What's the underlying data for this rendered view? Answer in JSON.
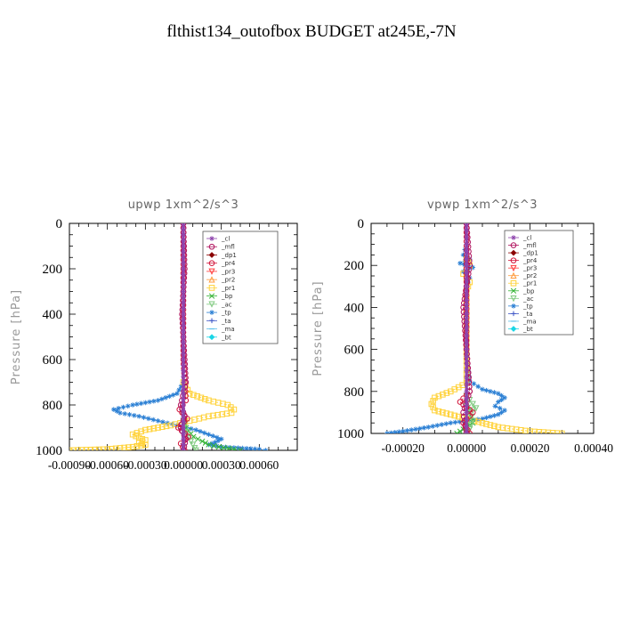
{
  "page": {
    "title": "flthist134_outofbox  BUDGET at245E,-7N"
  },
  "legend_entries": [
    {
      "name": "_cl",
      "color": "#8e44ad",
      "marker": "asterisk"
    },
    {
      "name": "_mfl",
      "color": "#b0125e",
      "marker": "circle"
    },
    {
      "name": "_dp1",
      "color": "#8b0000",
      "marker": "diamond"
    },
    {
      "name": "_pr4",
      "color": "#d2143a",
      "marker": "circle"
    },
    {
      "name": "_pr3",
      "color": "#ff3b3b",
      "marker": "triangle-down"
    },
    {
      "name": "_pr2",
      "color": "#ff9a3c",
      "marker": "triangle-up"
    },
    {
      "name": "_pr1",
      "color": "#ffd23a",
      "marker": "square"
    },
    {
      "name": "_bp",
      "color": "#35b335",
      "marker": "x"
    },
    {
      "name": "_ac",
      "color": "#7fc97f",
      "marker": "triangle-down"
    },
    {
      "name": "_tp",
      "color": "#2a7fd4",
      "marker": "asterisk"
    },
    {
      "name": "_ta",
      "color": "#3a52c4",
      "marker": "plus"
    },
    {
      "name": "_ma",
      "color": "#5bc0eb",
      "marker": "dash"
    },
    {
      "name": "_bt",
      "color": "#1ad6e6",
      "marker": "diamond"
    }
  ],
  "chart_data": [
    {
      "type": "line",
      "title": "upwp   1xm^2/s^3",
      "xlabel": "",
      "ylabel": "Pressure [hPa]",
      "xlim": [
        -0.0009,
        0.0009
      ],
      "ylim": [
        1000,
        0
      ],
      "xticks": [
        -0.0009,
        -0.0006,
        -0.0003,
        0.0,
        0.0003,
        0.0006
      ],
      "xtick_labels": [
        "-0.00090",
        "-0.00060",
        "-0.00030",
        "0.00000",
        "0.00030",
        "0.00060"
      ],
      "yticks": [
        0,
        200,
        400,
        600,
        800,
        1000
      ],
      "ytick_labels": [
        "0",
        "200",
        "400",
        "600",
        "800",
        "1000"
      ],
      "legend_position": "top-right",
      "grid": false,
      "series": [
        {
          "name": "_tp",
          "color": "#2a7fd4",
          "y": [
            700,
            750,
            780,
            800,
            820,
            835,
            850,
            870,
            890,
            910,
            930,
            950,
            965,
            975,
            985,
            995,
            1000
          ],
          "x": [
            0,
            -5e-05,
            -0.0002,
            -0.0004,
            -0.00055,
            -0.0005,
            -0.00035,
            -0.0002,
            -5e-05,
            0.0001,
            0.0002,
            0.0003,
            0.00025,
            0.0002,
            0.0003,
            0.0006,
            0.00065
          ]
        },
        {
          "name": "_pr1",
          "color": "#ffd23a",
          "y": [
            700,
            750,
            780,
            800,
            820,
            835,
            850,
            870,
            890,
            910,
            930,
            945,
            955,
            965,
            975,
            985,
            995,
            1000
          ],
          "x": [
            0,
            5e-05,
            0.0002,
            0.00035,
            0.0004,
            0.00038,
            0.0002,
            5e-05,
            -0.0001,
            -0.0003,
            -0.0004,
            -0.00035,
            -0.0003,
            -0.00035,
            -0.0003,
            -0.0004,
            -0.0006,
            -0.0009
          ]
        },
        {
          "name": "_bp",
          "color": "#35b335",
          "y": [
            850,
            900,
            940,
            960,
            975,
            985,
            995,
            1000
          ],
          "x": [
            0,
            2e-05,
            8e-05,
            0.00015,
            0.0002,
            0.00028,
            0.0004,
            0.00045
          ]
        },
        {
          "name": "_ac",
          "color": "#7fc97f",
          "y": [
            870,
            920,
            960,
            990,
            1000
          ],
          "x": [
            0,
            3e-05,
            6e-05,
            9e-05,
            0.0001
          ]
        },
        {
          "name": "_pr4",
          "color": "#d2143a",
          "y": [
            0,
            300,
            600,
            780,
            820,
            860,
            900,
            940,
            970,
            1000
          ],
          "x": [
            0,
            0,
            0,
            2e-05,
            -3e-05,
            3e-05,
            -4e-05,
            4e-05,
            -2e-05,
            1e-05
          ]
        },
        {
          "name": "_mfl",
          "color": "#b0125e",
          "y": [
            0,
            200,
            400,
            600,
            700,
            800,
            850,
            900,
            950,
            1000
          ],
          "x": [
            0,
            1e-05,
            -1e-05,
            1e-05,
            2e-05,
            -2e-05,
            1e-05,
            -2e-05,
            2e-05,
            0
          ]
        },
        {
          "name": "_cl",
          "color": "#8e44ad",
          "y": [
            0,
            100,
            200,
            300,
            400,
            500,
            600,
            700,
            800,
            900,
            1000
          ],
          "x": [
            0,
            0,
            0,
            0,
            0,
            0,
            0,
            0,
            0,
            0,
            0
          ]
        }
      ]
    },
    {
      "type": "line",
      "title": "vpwp   1xm^2/s^3",
      "xlabel": "",
      "ylabel": "Pressure [hPa]",
      "xlim": [
        -0.0003,
        0.0004
      ],
      "ylim": [
        1000,
        0
      ],
      "xticks": [
        -0.0002,
        0.0,
        0.0002,
        0.0004
      ],
      "xtick_labels": [
        "-0.00020",
        "0.00000",
        "0.00020",
        "0.00040"
      ],
      "yticks": [
        0,
        200,
        400,
        600,
        800,
        1000
      ],
      "ytick_labels": [
        "0",
        "200",
        "400",
        "600",
        "800",
        "1000"
      ],
      "legend_position": "top-right",
      "grid": false,
      "series": [
        {
          "name": "_tp",
          "color": "#2a7fd4",
          "y": [
            100,
            150,
            170,
            190,
            210,
            230,
            260,
            300,
            400,
            600,
            750,
            790,
            810,
            830,
            850,
            870,
            890,
            910,
            930,
            950,
            970,
            990,
            1000
          ],
          "x": [
            0,
            -1e-05,
            1e-05,
            -2e-05,
            2e-05,
            -1e-05,
            1e-05,
            0,
            0,
            0,
            1e-05,
            5e-05,
            0.0001,
            0.00012,
            0.0001,
            9e-05,
            0.00012,
            0.0001,
            5e-05,
            -5e-05,
            -0.00012,
            -0.0002,
            -0.00025
          ]
        },
        {
          "name": "_pr1",
          "color": "#ffd23a",
          "y": [
            170,
            200,
            240,
            280,
            320,
            760,
            800,
            830,
            860,
            890,
            910,
            930,
            950,
            970,
            990,
            1000
          ],
          "x": [
            0,
            1e-05,
            -1e-05,
            1e-05,
            0,
            0,
            -5e-05,
            -0.0001,
            -0.00011,
            -0.0001,
            -5e-05,
            0,
            5e-05,
            0.0001,
            0.0002,
            0.0003
          ]
        },
        {
          "name": "_bp",
          "color": "#35b335",
          "y": [
            850,
            900,
            950,
            980,
            1000
          ],
          "x": [
            0,
            1e-05,
            2e-05,
            -1e-05,
            -3e-05
          ]
        },
        {
          "name": "_ac",
          "color": "#7fc97f",
          "y": [
            820,
            860,
            880,
            900,
            940,
            980,
            1000
          ],
          "x": [
            0,
            2e-05,
            3e-05,
            1e-05,
            2e-05,
            1e-05,
            0
          ]
        },
        {
          "name": "_pr4",
          "color": "#d2143a",
          "y": [
            0,
            300,
            600,
            800,
            850,
            900,
            950,
            1000
          ],
          "x": [
            0,
            0,
            0,
            1e-05,
            -2e-05,
            2e-05,
            -1e-05,
            1e-05
          ]
        },
        {
          "name": "_mfl",
          "color": "#b0125e",
          "y": [
            0,
            200,
            400,
            600,
            800,
            900,
            1000
          ],
          "x": [
            0,
            1e-05,
            -1e-05,
            0,
            1e-05,
            -1e-05,
            0
          ]
        },
        {
          "name": "_cl",
          "color": "#8e44ad",
          "y": [
            0,
            100,
            200,
            300,
            400,
            500,
            600,
            700,
            800,
            900,
            1000
          ],
          "x": [
            0,
            0,
            0,
            0,
            0,
            0,
            0,
            0,
            0,
            0,
            0
          ]
        }
      ]
    }
  ]
}
